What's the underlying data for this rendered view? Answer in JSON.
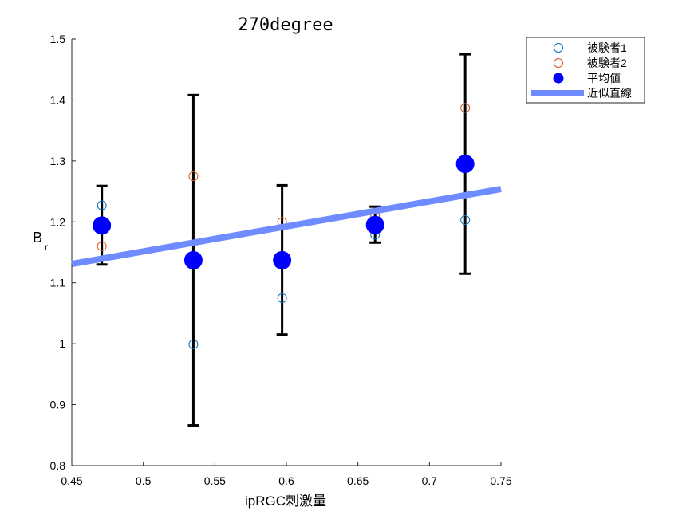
{
  "chart_data": {
    "type": "scatter",
    "title": "270degree",
    "xlabel": "ipRGC刺激量",
    "ylabel_main": "B",
    "ylabel_sub": "r",
    "xlim": [
      0.45,
      0.75
    ],
    "ylim": [
      0.8,
      1.5
    ],
    "xticks": [
      "0.45",
      "0.5",
      "0.55",
      "0.6",
      "0.65",
      "0.7",
      "0.75"
    ],
    "yticks": [
      "0.8",
      "0.9",
      "1",
      "1.1",
      "1.2",
      "1.3",
      "1.4",
      "1.5"
    ],
    "grid": false,
    "legend_position": "top-right-outside",
    "series": [
      {
        "name": "被験者1",
        "marker": "open-circle",
        "color": "#0072BD",
        "points": [
          {
            "x": 0.471,
            "y": 1.227
          },
          {
            "x": 0.535,
            "y": 0.999
          },
          {
            "x": 0.597,
            "y": 1.075
          },
          {
            "x": 0.662,
            "y": 1.179
          },
          {
            "x": 0.725,
            "y": 1.203
          }
        ]
      },
      {
        "name": "被験者2",
        "marker": "open-circle",
        "color": "#D95319",
        "points": [
          {
            "x": 0.471,
            "y": 1.16
          },
          {
            "x": 0.535,
            "y": 1.275
          },
          {
            "x": 0.597,
            "y": 1.2
          },
          {
            "x": 0.662,
            "y": 1.21
          },
          {
            "x": 0.725,
            "y": 1.387
          }
        ]
      },
      {
        "name": "平均値",
        "marker": "filled-circle",
        "color": "#0000FF",
        "points": [
          {
            "x": 0.471,
            "y": 1.194,
            "err_low": 1.13,
            "err_high": 1.259
          },
          {
            "x": 0.535,
            "y": 1.137,
            "err_low": 0.866,
            "err_high": 1.408
          },
          {
            "x": 0.597,
            "y": 1.137,
            "err_low": 1.015,
            "err_high": 1.26
          },
          {
            "x": 0.662,
            "y": 1.195,
            "err_low": 1.166,
            "err_high": 1.225
          },
          {
            "x": 0.725,
            "y": 1.295,
            "err_low": 1.115,
            "err_high": 1.475
          }
        ]
      },
      {
        "name": "近似直線",
        "marker": "line",
        "color": "#6E8CFF",
        "line": [
          {
            "x": 0.45,
            "y": 1.131
          },
          {
            "x": 0.75,
            "y": 1.254
          }
        ]
      }
    ]
  }
}
